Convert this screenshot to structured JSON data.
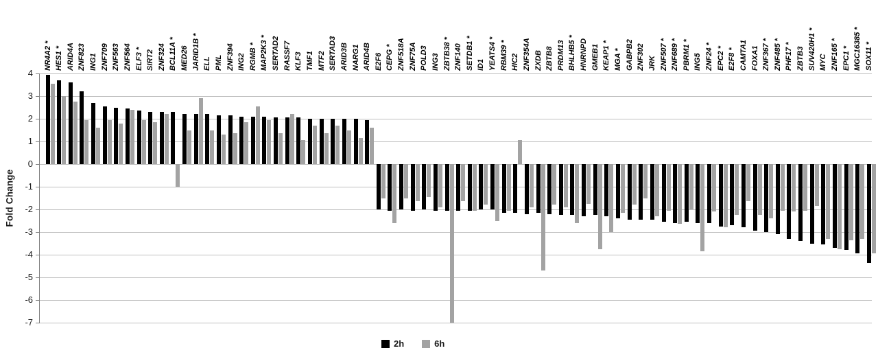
{
  "legend": {
    "items": [
      {
        "label": "2h",
        "color": "#000000"
      },
      {
        "label": "6h",
        "color": "#a3a3a3"
      }
    ]
  },
  "chart_data": {
    "type": "bar",
    "title": "",
    "xlabel": "",
    "ylabel": "Fold Change",
    "ylim": [
      -7,
      4
    ],
    "yticks": [
      4,
      3,
      2,
      1,
      0,
      -1,
      -2,
      -3,
      -4,
      -5,
      -6,
      -7
    ],
    "grid": true,
    "legend_position": "bottom-center",
    "categories": [
      "NR4A2 *",
      "HES1 *",
      "ARID4A",
      "ZNF823",
      "ING1",
      "ZNF709",
      "ZNF563",
      "ZNF564",
      "ELF3 *",
      "SIRT2",
      "ZNF324",
      "BCL11A *",
      "MED26",
      "JARID1B *",
      "ELL",
      "PML",
      "ZNF394",
      "ING2",
      "RGMB *",
      "MAP2K3 *",
      "SERTAD2",
      "RASSF7",
      "KLF3",
      "TMF1",
      "MTF2",
      "SERTAD3",
      "ARID3B",
      "NARG1",
      "ARID4B",
      "E2F6",
      "CEPG *",
      "ZNF518A",
      "ZNF75A",
      "POLD3",
      "ING3",
      "ZBTB38 *",
      "ZNF140",
      "SETDB1 *",
      "ID1",
      "YEATS4 *",
      "RBM39 *",
      "HIC2",
      "ZNF354A",
      "ZXDB",
      "ZBTB8",
      "PRDM13",
      "BHLHB5 *",
      "HNRNPD",
      "GMEB1",
      "KEAP1 *",
      "MGA *",
      "GABPB2",
      "ZNF302",
      "JRK",
      "ZNF507 *",
      "ZNF689 *",
      "PBRM1 *",
      "ING5",
      "ZNF24 *",
      "EPC2 *",
      "E2F8 *",
      "CAMTA1",
      "FOXA1",
      "ZNF367 *",
      "ZNF485 *",
      "PHF17 *",
      "ZBTB3",
      "SUV420H1 *",
      "MYC",
      "ZNF165 *",
      "EPC1 *",
      "MGC16385 *",
      "SOX11 *"
    ],
    "series": [
      {
        "name": "2h",
        "color": "#000000",
        "values": [
          3.95,
          3.7,
          3.6,
          3.2,
          2.7,
          2.55,
          2.5,
          2.45,
          2.35,
          2.3,
          2.3,
          2.3,
          2.2,
          2.2,
          2.2,
          2.15,
          2.15,
          2.1,
          2.1,
          2.1,
          2.05,
          2.05,
          2.05,
          2.0,
          2.0,
          2.0,
          2.0,
          2.0,
          1.95,
          -2.0,
          -2.05,
          -2.0,
          -2.05,
          -2.0,
          -2.05,
          -2.05,
          -2.05,
          -2.05,
          -2.0,
          -2.0,
          -2.15,
          -2.15,
          -2.2,
          -2.15,
          -2.2,
          -2.25,
          -2.25,
          -2.3,
          -2.25,
          -2.3,
          -2.4,
          -2.45,
          -2.45,
          -2.45,
          -2.55,
          -2.6,
          -2.55,
          -2.6,
          -2.6,
          -2.75,
          -2.7,
          -2.8,
          -2.95,
          -3.0,
          -3.1,
          -3.3,
          -3.4,
          -3.5,
          -3.55,
          -3.7,
          -3.8,
          -3.95,
          -4.35
        ]
      },
      {
        "name": "6h",
        "color": "#a3a3a3",
        "values": [
          3.55,
          3.0,
          2.75,
          1.95,
          1.6,
          1.95,
          1.8,
          2.4,
          1.95,
          1.85,
          2.2,
          -1.0,
          1.5,
          2.9,
          1.5,
          1.3,
          1.35,
          1.85,
          2.55,
          1.95,
          1.35,
          2.2,
          1.05,
          1.7,
          1.35,
          1.7,
          1.5,
          1.15,
          1.6,
          -1.5,
          -2.6,
          -1.5,
          -1.65,
          -1.45,
          -1.9,
          -7.0,
          -1.65,
          -2.05,
          -1.8,
          -2.5,
          -2.05,
          1.05,
          -1.9,
          -4.7,
          -1.8,
          -1.9,
          -2.6,
          -1.75,
          -3.75,
          -3.0,
          -2.15,
          -1.8,
          -1.5,
          -2.3,
          -2.05,
          -2.65,
          -2.0,
          -3.85,
          -2.1,
          -2.8,
          -2.25,
          -1.65,
          -2.25,
          -2.4,
          -2.05,
          -2.1,
          -2.05,
          -1.85,
          -3.3,
          -3.75,
          -3.35,
          -3.3,
          -3.95
        ]
      }
    ]
  }
}
